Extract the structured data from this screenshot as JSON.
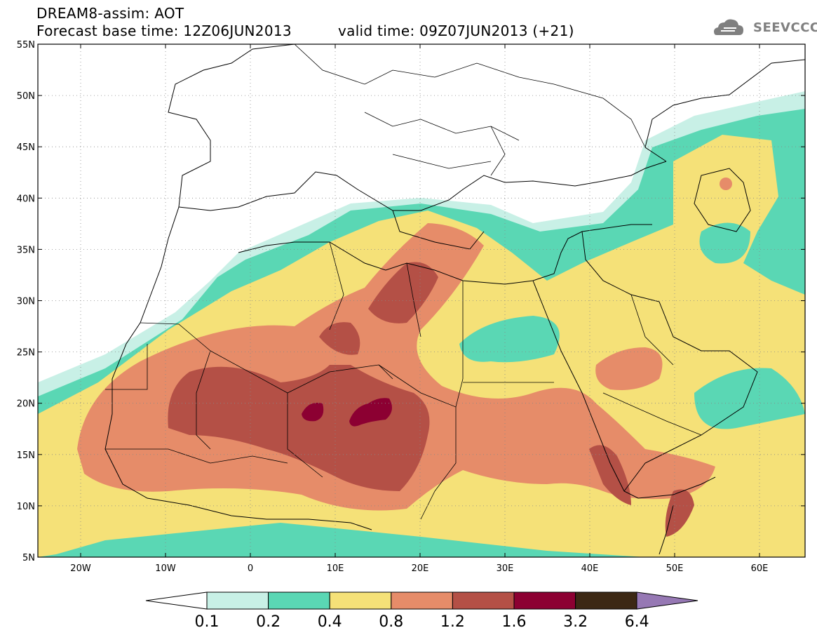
{
  "header": {
    "title_line1": "DREAM8-assim: AOT",
    "title_line2": "Forecast base time: 12Z06JUN2013",
    "valid_time": "valid time: 09Z07JUN2013 (+21)"
  },
  "logo": {
    "text": "SEEVCCC",
    "icon": "cloud-icon"
  },
  "map": {
    "lat_ticks": [
      "55N",
      "50N",
      "45N",
      "40N",
      "35N",
      "30N",
      "25N",
      "20N",
      "15N",
      "10N",
      "5N"
    ],
    "lon_ticks": [
      "20W",
      "10W",
      "0",
      "10E",
      "20E",
      "30E",
      "40E",
      "50E",
      "60E"
    ]
  },
  "colorbar": {
    "levels": [
      "0.1",
      "0.2",
      "0.4",
      "0.8",
      "1.2",
      "1.6",
      "3.2",
      "6.4"
    ],
    "colors": [
      "#ffffff",
      "#c8f0e6",
      "#5ad7b4",
      "#f5e178",
      "#e68c69",
      "#b45046",
      "#8c0032",
      "#3c2814",
      "#9678b4"
    ]
  }
}
